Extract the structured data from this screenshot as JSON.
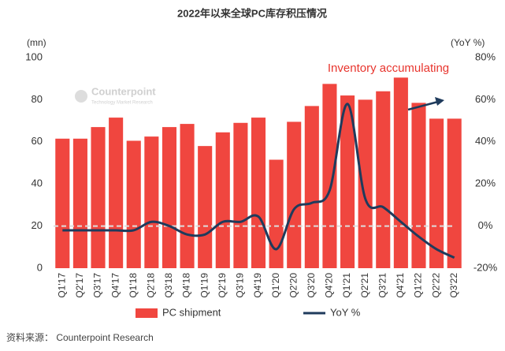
{
  "chart_data": {
    "type": "bar",
    "title": "2022年以来全球PC库存积压情况",
    "y_label": "(mn)",
    "y2_label": "(YoY %)",
    "watermark": [
      "Counterpoint",
      "Technology Market Research"
    ],
    "annotation": "Inventory accumulating",
    "source": "资料来源： Counterpoint Research",
    "categories": [
      "Q1'17",
      "Q2'17",
      "Q3'17",
      "Q4'17",
      "Q1'18",
      "Q2'18",
      "Q3'18",
      "Q4'18",
      "Q1'19",
      "Q2'19",
      "Q3'19",
      "Q4'19",
      "Q1'20",
      "Q2'20",
      "Q3'20",
      "Q4'20",
      "Q1'21",
      "Q2'21",
      "Q3'21",
      "Q4'21",
      "Q1'22",
      "Q2'22",
      "Q3'22"
    ],
    "series": [
      {
        "name": "PC shipment",
        "type": "bar",
        "color": "#f0463f",
        "values": [
          61.5,
          61.5,
          67,
          71.5,
          60.5,
          62.5,
          67,
          68.5,
          58,
          64.5,
          69,
          71.5,
          51.5,
          69.5,
          77,
          87.5,
          82,
          80,
          84,
          90.5,
          78.5,
          71,
          71
        ]
      },
      {
        "name": "YoY %",
        "type": "line",
        "axis": "y2",
        "color": "#1f3b5c",
        "values": [
          -2,
          -2,
          -2,
          -2,
          -2,
          2,
          0,
          -4,
          -4,
          2,
          2,
          4.5,
          -11,
          8,
          11,
          17,
          58,
          13,
          9,
          2,
          -5,
          -11,
          -15
        ]
      }
    ],
    "ylim": [
      0,
      100
    ],
    "yticks": [
      0,
      20,
      40,
      60,
      80,
      100
    ],
    "y2lim": [
      -20,
      80
    ],
    "y2ticks": [
      {
        "value": -20,
        "label": "-20%"
      },
      {
        "value": 0,
        "label": "0%"
      },
      {
        "value": 20,
        "label": "20%"
      },
      {
        "value": 40,
        "label": "40%"
      },
      {
        "value": 60,
        "label": "60%"
      },
      {
        "value": 80,
        "label": "80%"
      }
    ],
    "reference_line": {
      "axis": "y2",
      "value": 0
    },
    "grid": false,
    "legend": "bottom"
  }
}
